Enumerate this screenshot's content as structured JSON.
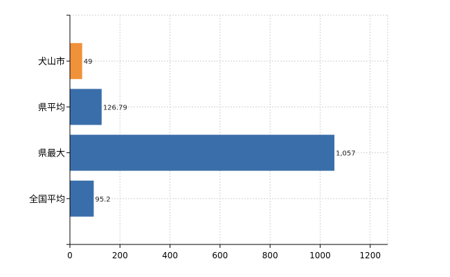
{
  "chart_data": {
    "type": "bar",
    "orientation": "horizontal",
    "categories": [
      "犬山市",
      "県平均",
      "県最大",
      "全国平均"
    ],
    "values": [
      49,
      126.79,
      1057,
      95.2
    ],
    "value_labels": [
      "49",
      "126.79",
      "1,057",
      "95.2"
    ],
    "colors": [
      "#F0923A",
      "#3A6EAA",
      "#3A6EAA",
      "#3A6EAA"
    ],
    "xlim": [
      0,
      1270
    ],
    "xticks": [
      0,
      200,
      400,
      600,
      800,
      1000,
      1200
    ],
    "grid": true,
    "title": "",
    "xlabel": "",
    "ylabel": ""
  }
}
